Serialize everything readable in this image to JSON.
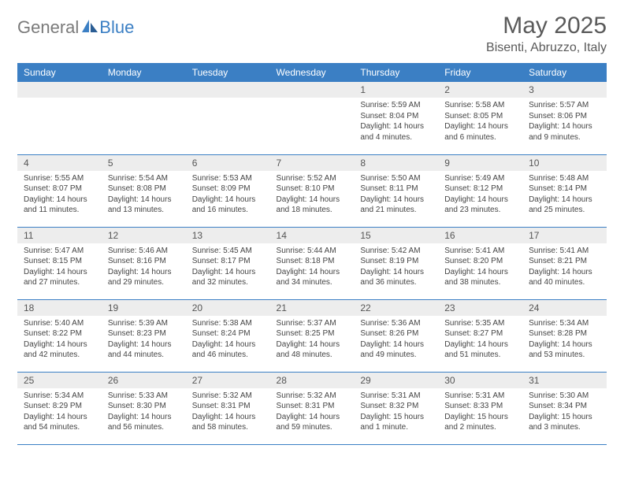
{
  "logo": {
    "text1": "General",
    "text2": "Blue"
  },
  "title": "May 2025",
  "location": "Bisenti, Abruzzo, Italy",
  "colors": {
    "header_bg": "#3b7fc4",
    "header_fg": "#ffffff",
    "daynum_bg": "#ededed",
    "border": "#3b7fc4",
    "text": "#444444",
    "logo_gray": "#7a7a7a",
    "logo_blue": "#3b7fc4"
  },
  "day_names": [
    "Sunday",
    "Monday",
    "Tuesday",
    "Wednesday",
    "Thursday",
    "Friday",
    "Saturday"
  ],
  "layout": {
    "columns": 7,
    "rows": 5,
    "first_day_col_index": 4,
    "days_in_month": 31
  },
  "cell_font_size": 10,
  "header_font_size": 12,
  "days": {
    "1": {
      "sunrise": "5:59 AM",
      "sunset": "8:04 PM",
      "daylight": "14 hours and 4 minutes."
    },
    "2": {
      "sunrise": "5:58 AM",
      "sunset": "8:05 PM",
      "daylight": "14 hours and 6 minutes."
    },
    "3": {
      "sunrise": "5:57 AM",
      "sunset": "8:06 PM",
      "daylight": "14 hours and 9 minutes."
    },
    "4": {
      "sunrise": "5:55 AM",
      "sunset": "8:07 PM",
      "daylight": "14 hours and 11 minutes."
    },
    "5": {
      "sunrise": "5:54 AM",
      "sunset": "8:08 PM",
      "daylight": "14 hours and 13 minutes."
    },
    "6": {
      "sunrise": "5:53 AM",
      "sunset": "8:09 PM",
      "daylight": "14 hours and 16 minutes."
    },
    "7": {
      "sunrise": "5:52 AM",
      "sunset": "8:10 PM",
      "daylight": "14 hours and 18 minutes."
    },
    "8": {
      "sunrise": "5:50 AM",
      "sunset": "8:11 PM",
      "daylight": "14 hours and 21 minutes."
    },
    "9": {
      "sunrise": "5:49 AM",
      "sunset": "8:12 PM",
      "daylight": "14 hours and 23 minutes."
    },
    "10": {
      "sunrise": "5:48 AM",
      "sunset": "8:14 PM",
      "daylight": "14 hours and 25 minutes."
    },
    "11": {
      "sunrise": "5:47 AM",
      "sunset": "8:15 PM",
      "daylight": "14 hours and 27 minutes."
    },
    "12": {
      "sunrise": "5:46 AM",
      "sunset": "8:16 PM",
      "daylight": "14 hours and 29 minutes."
    },
    "13": {
      "sunrise": "5:45 AM",
      "sunset": "8:17 PM",
      "daylight": "14 hours and 32 minutes."
    },
    "14": {
      "sunrise": "5:44 AM",
      "sunset": "8:18 PM",
      "daylight": "14 hours and 34 minutes."
    },
    "15": {
      "sunrise": "5:42 AM",
      "sunset": "8:19 PM",
      "daylight": "14 hours and 36 minutes."
    },
    "16": {
      "sunrise": "5:41 AM",
      "sunset": "8:20 PM",
      "daylight": "14 hours and 38 minutes."
    },
    "17": {
      "sunrise": "5:41 AM",
      "sunset": "8:21 PM",
      "daylight": "14 hours and 40 minutes."
    },
    "18": {
      "sunrise": "5:40 AM",
      "sunset": "8:22 PM",
      "daylight": "14 hours and 42 minutes."
    },
    "19": {
      "sunrise": "5:39 AM",
      "sunset": "8:23 PM",
      "daylight": "14 hours and 44 minutes."
    },
    "20": {
      "sunrise": "5:38 AM",
      "sunset": "8:24 PM",
      "daylight": "14 hours and 46 minutes."
    },
    "21": {
      "sunrise": "5:37 AM",
      "sunset": "8:25 PM",
      "daylight": "14 hours and 48 minutes."
    },
    "22": {
      "sunrise": "5:36 AM",
      "sunset": "8:26 PM",
      "daylight": "14 hours and 49 minutes."
    },
    "23": {
      "sunrise": "5:35 AM",
      "sunset": "8:27 PM",
      "daylight": "14 hours and 51 minutes."
    },
    "24": {
      "sunrise": "5:34 AM",
      "sunset": "8:28 PM",
      "daylight": "14 hours and 53 minutes."
    },
    "25": {
      "sunrise": "5:34 AM",
      "sunset": "8:29 PM",
      "daylight": "14 hours and 54 minutes."
    },
    "26": {
      "sunrise": "5:33 AM",
      "sunset": "8:30 PM",
      "daylight": "14 hours and 56 minutes."
    },
    "27": {
      "sunrise": "5:32 AM",
      "sunset": "8:31 PM",
      "daylight": "14 hours and 58 minutes."
    },
    "28": {
      "sunrise": "5:32 AM",
      "sunset": "8:31 PM",
      "daylight": "14 hours and 59 minutes."
    },
    "29": {
      "sunrise": "5:31 AM",
      "sunset": "8:32 PM",
      "daylight": "15 hours and 1 minute."
    },
    "30": {
      "sunrise": "5:31 AM",
      "sunset": "8:33 PM",
      "daylight": "15 hours and 2 minutes."
    },
    "31": {
      "sunrise": "5:30 AM",
      "sunset": "8:34 PM",
      "daylight": "15 hours and 3 minutes."
    }
  },
  "labels": {
    "sunrise": "Sunrise:",
    "sunset": "Sunset:",
    "daylight": "Daylight:"
  }
}
